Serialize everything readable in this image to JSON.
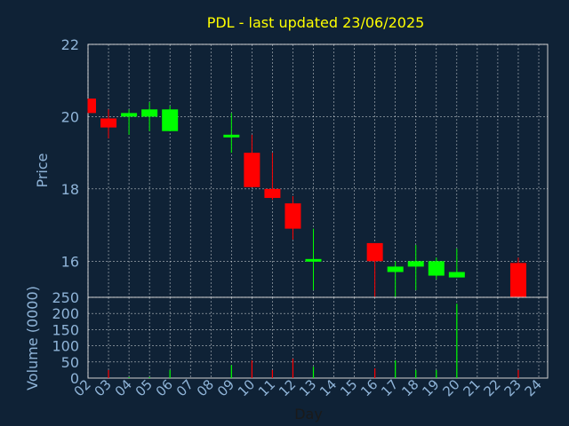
{
  "chart_data": {
    "type": "candlestick",
    "title": "PDL - last updated 23/06/2025",
    "xlabel": "Day",
    "ylabel": "Price",
    "ylabel_volume": "Volume (0000)",
    "price_ylim": [
      15,
      22
    ],
    "price_yticks": [
      16,
      18,
      20,
      22
    ],
    "volume_ylim": [
      0,
      250
    ],
    "volume_yticks": [
      0,
      50,
      100,
      150,
      200,
      250
    ],
    "grid": true,
    "x_ticks": [
      "02",
      "03",
      "04",
      "05",
      "06",
      "07",
      "08",
      "09",
      "10",
      "11",
      "12",
      "13",
      "14",
      "15",
      "16",
      "17",
      "18",
      "19",
      "20",
      "21",
      "22",
      "23",
      "24"
    ],
    "colors": {
      "background": "#0f2236",
      "plot_background": "#0f2236",
      "title": "#ffff00",
      "axis_text": "#8fb4d8",
      "grid": "#ffffff",
      "up": "#00ff00",
      "down": "#ff0000"
    },
    "candles": [
      {
        "day": "02",
        "open": 20.5,
        "high": 20.5,
        "low": 20.1,
        "close": 20.1,
        "volume": 0
      },
      {
        "day": "03",
        "open": 19.95,
        "high": 20.2,
        "low": 19.4,
        "close": 19.7,
        "volume": 25
      },
      {
        "day": "04",
        "open": 20.0,
        "high": 20.2,
        "low": 19.5,
        "close": 20.1,
        "volume": 3
      },
      {
        "day": "05",
        "open": 20.0,
        "high": 20.4,
        "low": 19.6,
        "close": 20.2,
        "volume": 3
      },
      {
        "day": "06",
        "open": 19.6,
        "high": 20.3,
        "low": 19.6,
        "close": 20.2,
        "volume": 25
      },
      {
        "day": "09",
        "open": 19.45,
        "high": 20.1,
        "low": 19.0,
        "close": 19.5,
        "volume": 40
      },
      {
        "day": "10",
        "open": 19.0,
        "high": 19.5,
        "low": 18.05,
        "close": 18.05,
        "volume": 55
      },
      {
        "day": "11",
        "open": 18.0,
        "high": 19.0,
        "low": 17.7,
        "close": 17.75,
        "volume": 25
      },
      {
        "day": "12",
        "open": 17.6,
        "high": 17.8,
        "low": 16.6,
        "close": 16.9,
        "volume": 60
      },
      {
        "day": "13",
        "open": 16.02,
        "high": 16.9,
        "low": 15.2,
        "close": 16.06,
        "volume": 35
      },
      {
        "day": "16",
        "open": 16.5,
        "high": 16.5,
        "low": 15.0,
        "close": 16.0,
        "volume": 30
      },
      {
        "day": "17",
        "open": 15.7,
        "high": 16.0,
        "low": 15.0,
        "close": 15.85,
        "volume": 55
      },
      {
        "day": "18",
        "open": 15.85,
        "high": 16.45,
        "low": 15.2,
        "close": 16.0,
        "volume": 25
      },
      {
        "day": "19",
        "open": 15.6,
        "high": 16.1,
        "low": 15.5,
        "close": 16.0,
        "volume": 25
      },
      {
        "day": "20",
        "open": 15.55,
        "high": 16.35,
        "low": 15.55,
        "close": 15.7,
        "volume": 230
      },
      {
        "day": "23",
        "open": 15.95,
        "high": 16.1,
        "low": 15.0,
        "close": 15.0,
        "volume": 25
      }
    ]
  }
}
